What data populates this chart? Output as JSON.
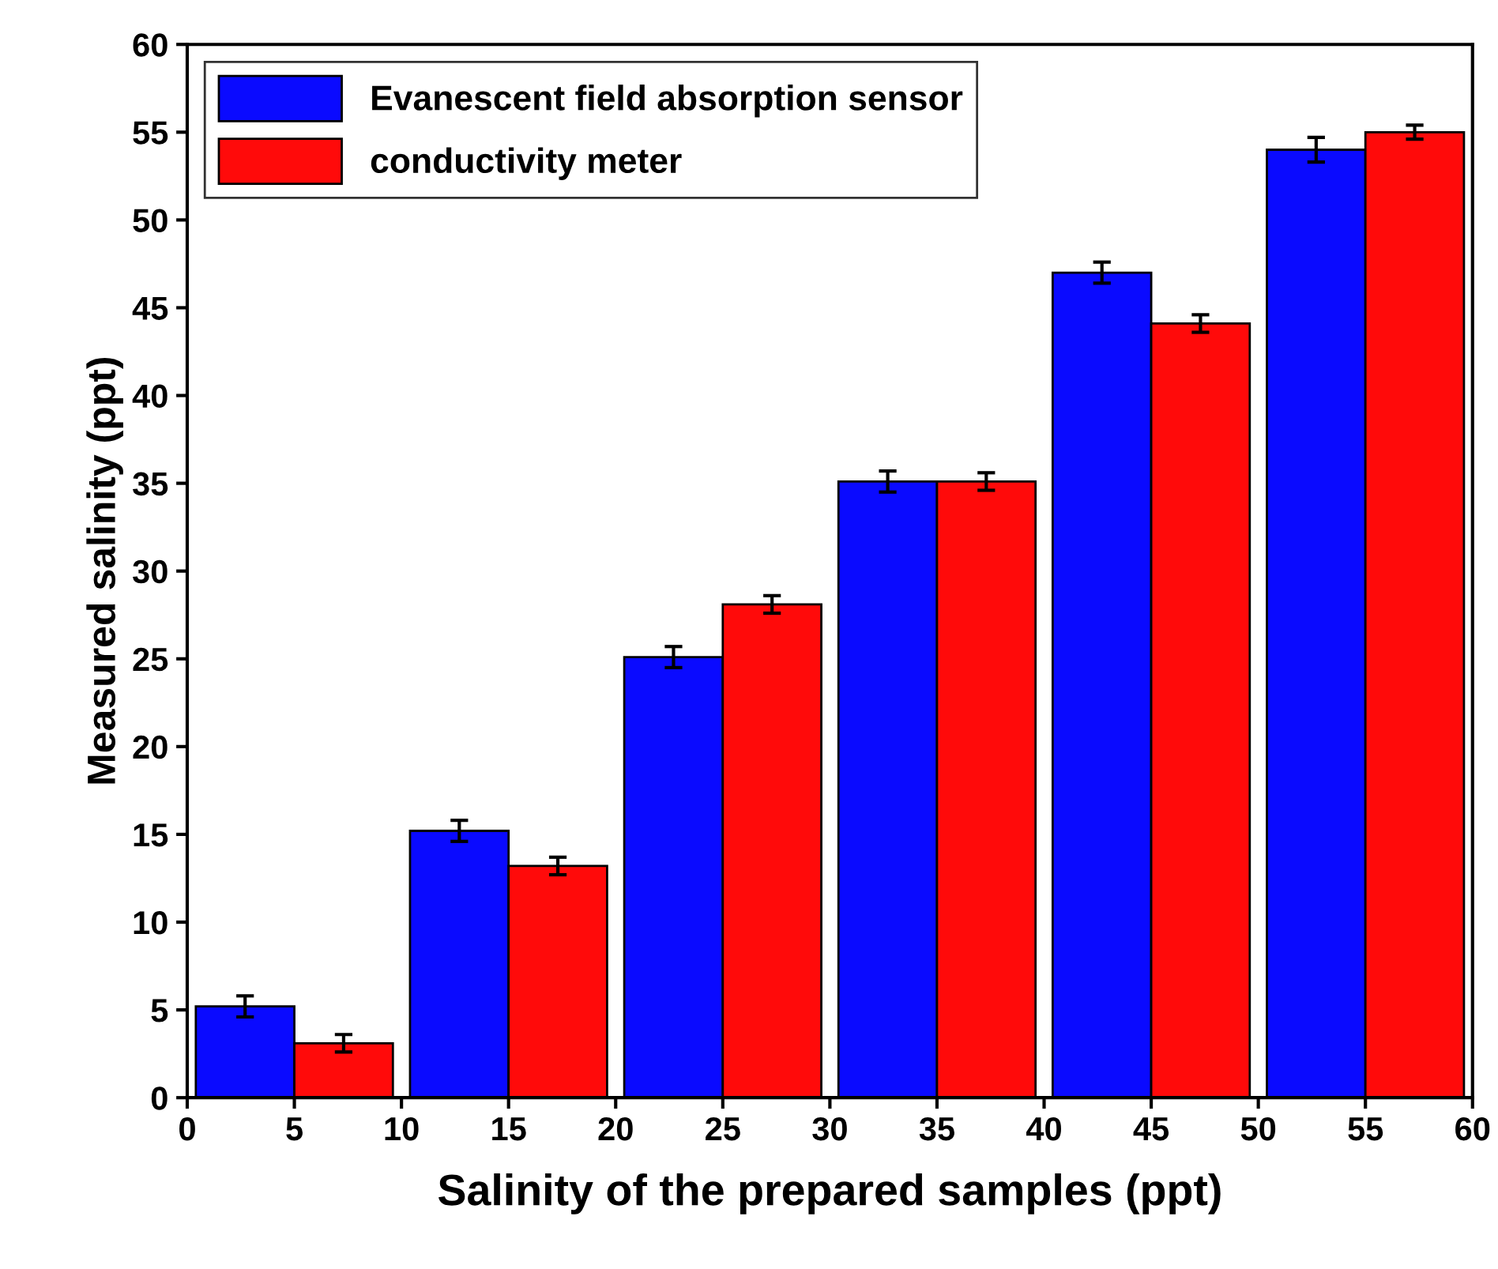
{
  "chart_data": {
    "type": "bar",
    "xlabel": "Salinity of the prepared samples (ppt)",
    "ylabel": "Measured salinity (ppt)",
    "x": [
      5,
      15,
      25,
      35,
      45,
      55
    ],
    "series": [
      {
        "name": "Evanescent field absorption sensor",
        "color": "#0a0aff",
        "values": [
          5.2,
          15.2,
          25.1,
          35.1,
          47.0,
          54.0
        ],
        "errors": [
          0.6,
          0.6,
          0.6,
          0.6,
          0.6,
          0.7
        ]
      },
      {
        "name": "conductivity meter",
        "color": "#ff0a0a",
        "values": [
          3.1,
          13.2,
          28.1,
          35.1,
          44.1,
          55.0
        ],
        "errors": [
          0.5,
          0.5,
          0.5,
          0.5,
          0.5,
          0.4
        ]
      }
    ],
    "xlim": [
      0,
      60
    ],
    "xticks": [
      0,
      5,
      10,
      15,
      20,
      25,
      30,
      35,
      40,
      45,
      50,
      55,
      60
    ],
    "ylim": [
      0,
      60
    ],
    "yticks": [
      0,
      5,
      10,
      15,
      20,
      25,
      30,
      35,
      40,
      45,
      50,
      55,
      60
    ],
    "grid": false,
    "legend": "top left"
  }
}
